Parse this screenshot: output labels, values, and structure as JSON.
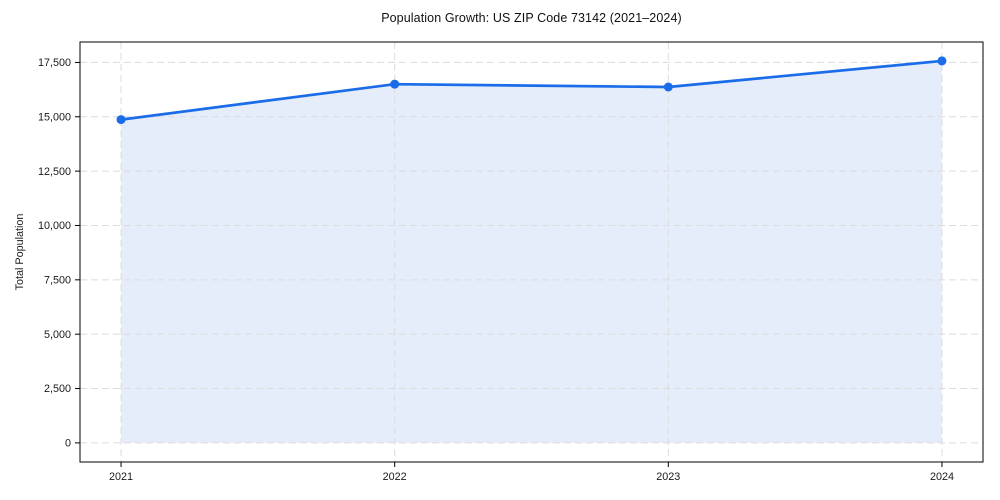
{
  "chart_data": {
    "type": "area",
    "title": "Population Growth: US ZIP Code 73142 (2021–2024)",
    "xlabel": "",
    "ylabel": "Total Population",
    "categories": [
      "2021",
      "2022",
      "2023",
      "2024"
    ],
    "x": [
      2021,
      2022,
      2023,
      2024
    ],
    "series": [
      {
        "name": "Total Population",
        "values": [
          14870,
          16500,
          16370,
          17570
        ]
      }
    ],
    "y_ticks": [
      0,
      2500,
      5000,
      7500,
      10000,
      12500,
      15000,
      17500
    ],
    "y_tick_labels": [
      "0",
      "2,500",
      "5,000",
      "7,500",
      "10,000",
      "12,500",
      "15,000",
      "17,500"
    ],
    "xlim": [
      2020.85,
      2024.15
    ],
    "ylim": [
      -880,
      18440
    ],
    "fill_baseline": 0,
    "grid": true,
    "grid_style": "dashed",
    "legend_position": "none",
    "colors": {
      "line": "#1a6ce8",
      "marker": "#1a6ce8",
      "fill": "#e6edfa",
      "grid": "#dcdcdc",
      "axis": "#000000",
      "text": "#1a1a1a",
      "background": "#ffffff"
    }
  }
}
